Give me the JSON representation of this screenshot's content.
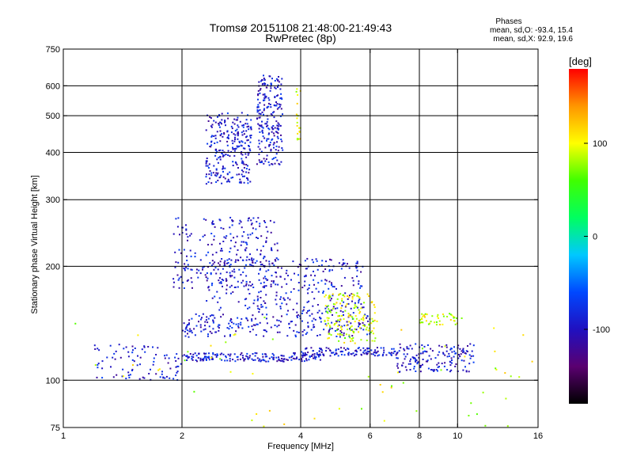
{
  "chart_data": {
    "type": "scatter",
    "title": "Tromsø 20151108 21:48:00-21:49:43",
    "subtitle": "RwPretec (8p)",
    "xlabel": "Frequency [MHz]",
    "ylabel": "Stationary phase Virtual Height [km]",
    "x_scale": "log",
    "y_scale": "log",
    "xlim": [
      1,
      16
    ],
    "ylim": [
      75,
      750
    ],
    "x_ticks": [
      1,
      2,
      4,
      6,
      8,
      10,
      16
    ],
    "y_ticks": [
      75,
      100,
      200,
      300,
      400,
      500,
      600,
      750
    ],
    "x_grid": [
      2,
      4,
      6,
      8,
      10
    ],
    "y_grid": [
      100,
      200,
      300,
      400,
      500,
      600
    ],
    "grid": true,
    "colorbar": {
      "unit": "[deg]",
      "range": [
        -180,
        180
      ],
      "ticks": [
        100,
        0,
        -100
      ],
      "colormap": [
        "#000000",
        "#5a0070",
        "#2010c0",
        "#0048ff",
        "#00c8ff",
        "#00ff60",
        "#40ff00",
        "#ffff00",
        "#ff9600",
        "#ff0000"
      ]
    },
    "phases_legend": {
      "title": "Phases",
      "lines": [
        "mean, sd,O: -93.4, 15.4",
        "mean, sd,X:  92.9, 19.6"
      ]
    },
    "series": [
      {
        "phase_deg": -93.4,
        "clusters": [
          {
            "x": [
              2.3,
              3.0
            ],
            "y": [
              330,
              510
            ],
            "n": 260
          },
          {
            "x": [
              3.1,
              3.6
            ],
            "y": [
              370,
              640
            ],
            "n": 220
          },
          {
            "x": [
              1.9,
              3.5
            ],
            "y": [
              175,
              270
            ],
            "n": 240
          },
          {
            "x": [
              2.3,
              5.8
            ],
            "y": [
              150,
              210
            ],
            "n": 300
          },
          {
            "x": [
              2.0,
              4.5
            ],
            "y": [
              112,
              118
            ],
            "n": 180
          },
          {
            "x": [
              4.0,
              7.0
            ],
            "y": [
              116,
              122
            ],
            "n": 120
          },
          {
            "x": [
              7.0,
              11.0
            ],
            "y": [
              105,
              125
            ],
            "n": 160
          },
          {
            "x": [
              1.2,
              2.0
            ],
            "y": [
              100,
              125
            ],
            "n": 90
          },
          {
            "x": [
              2.0,
              6.0
            ],
            "y": [
              130,
              150
            ],
            "n": 220
          }
        ]
      },
      {
        "phase_deg": 92.9,
        "clusters": [
          {
            "x": [
              4.6,
              6.2
            ],
            "y": [
              125,
              170
            ],
            "n": 160
          },
          {
            "x": [
              8.0,
              10.0
            ],
            "y": [
              140,
              150
            ],
            "n": 45
          },
          {
            "x": [
              3.9,
              4.0
            ],
            "y": [
              430,
              590
            ],
            "n": 20
          },
          {
            "x": [
              1.0,
              16.0
            ],
            "y": [
              75,
              150
            ],
            "n": 60
          }
        ]
      }
    ]
  }
}
